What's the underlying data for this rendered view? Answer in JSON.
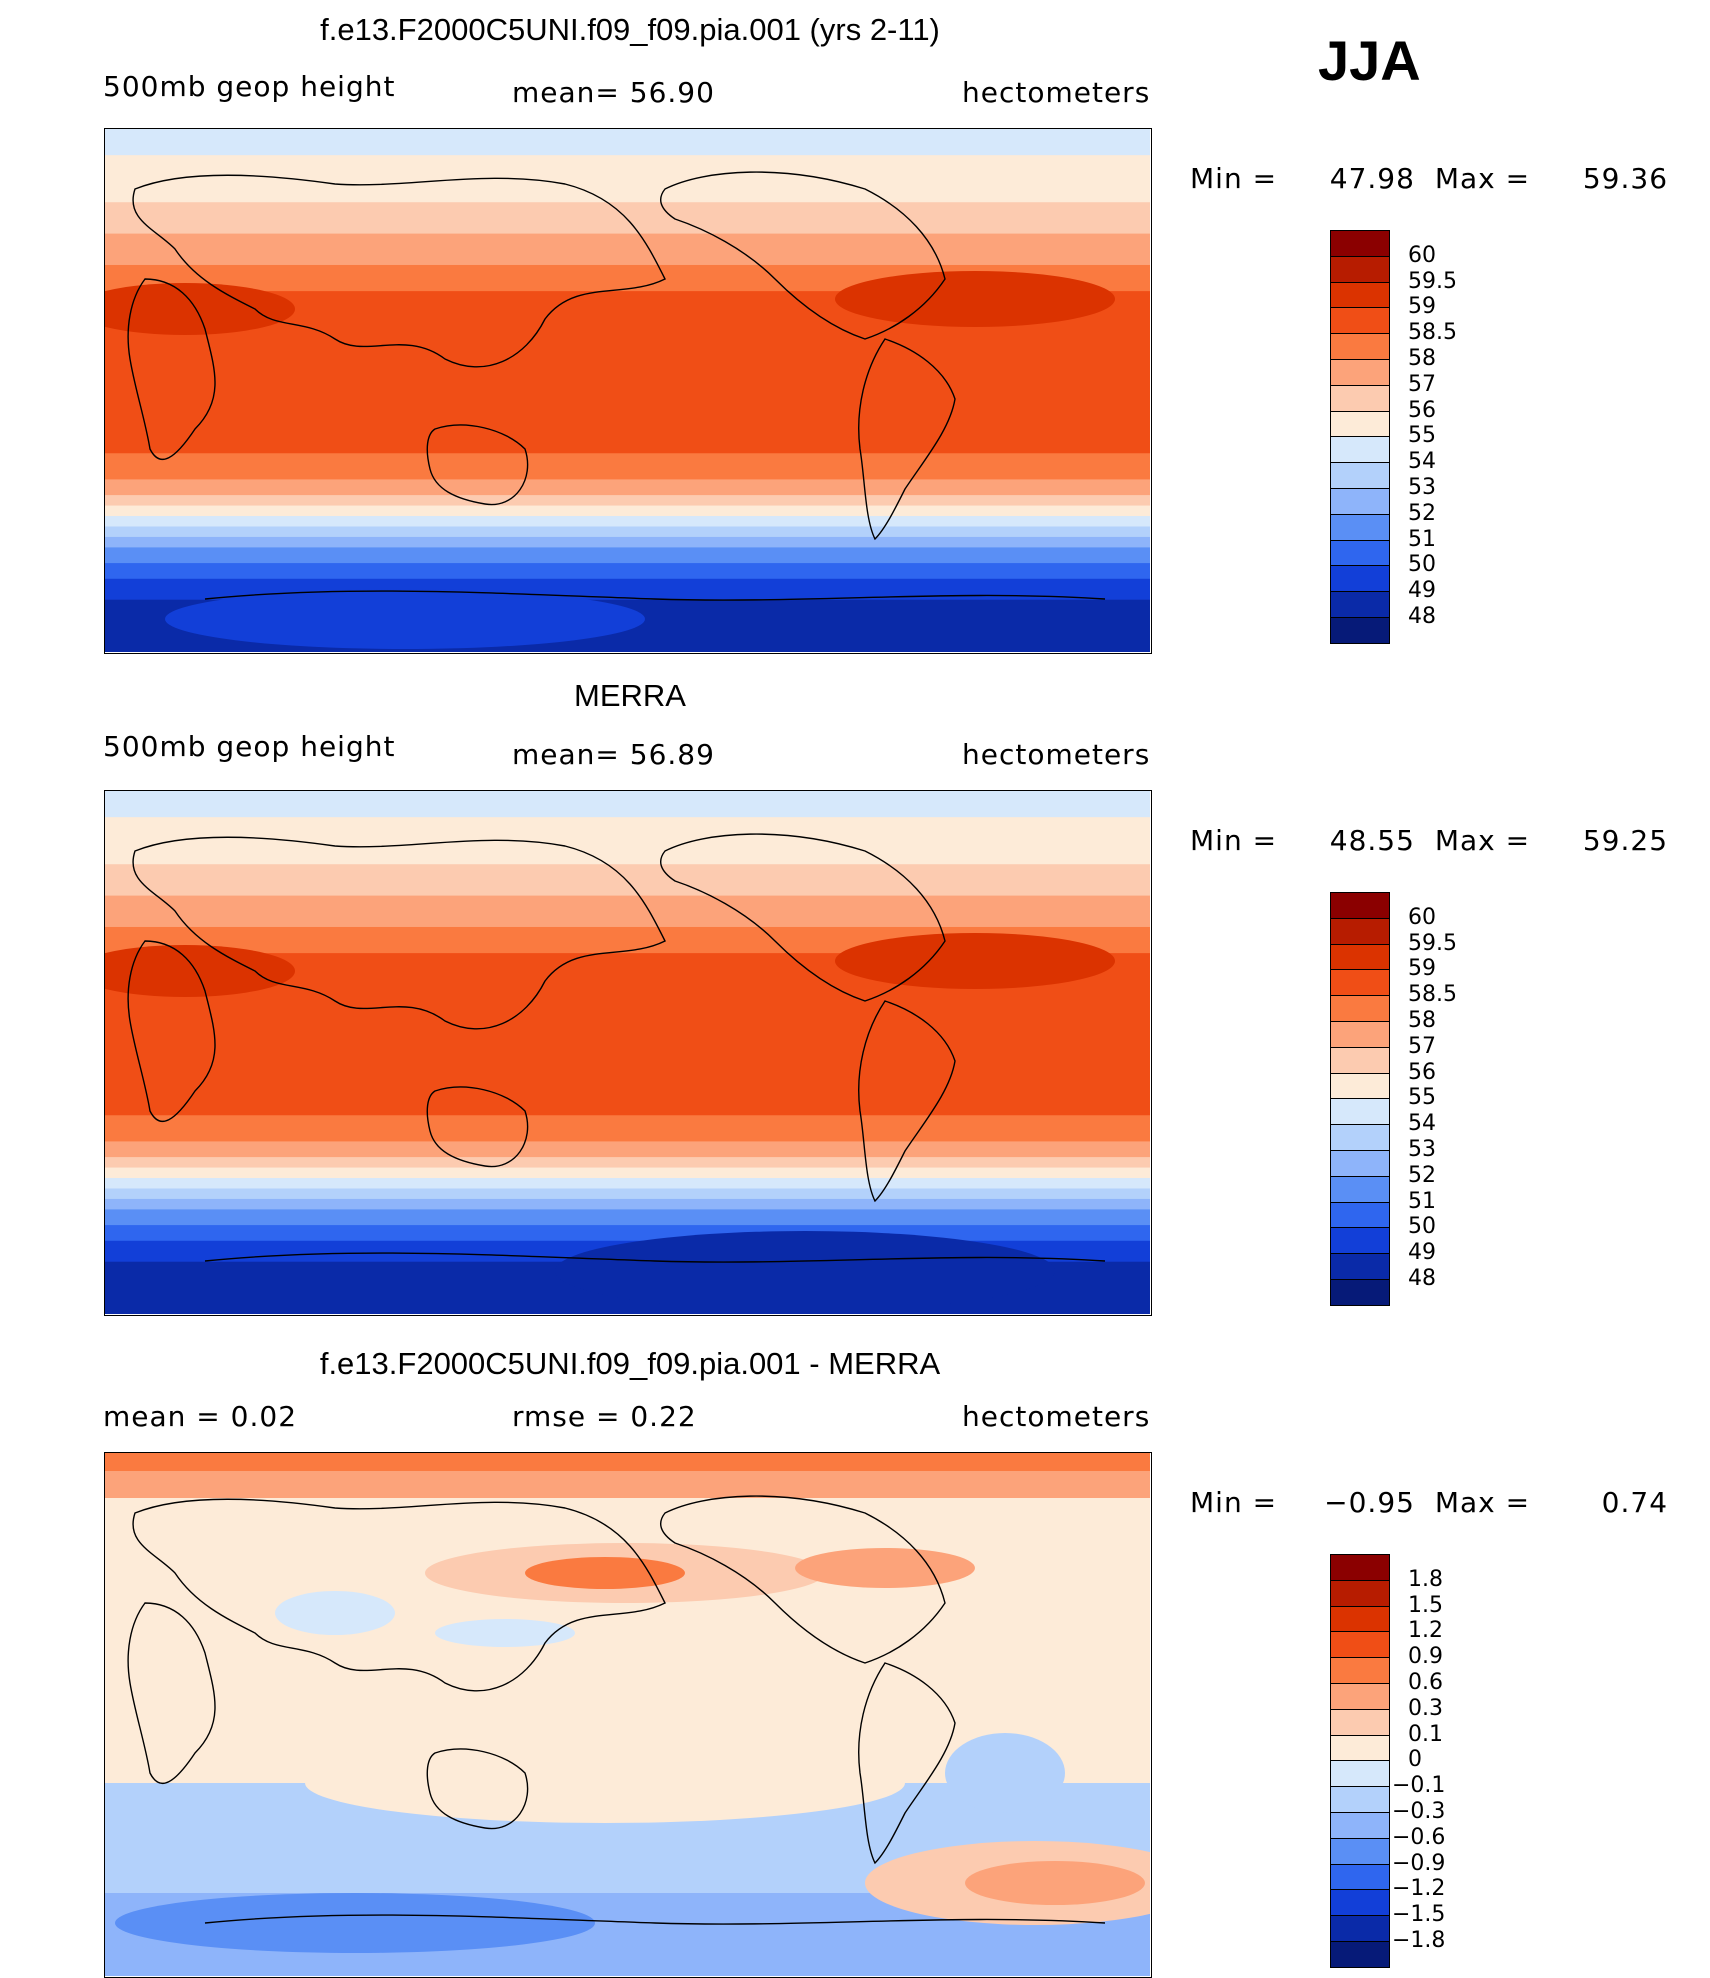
{
  "season": "JJA",
  "panels": [
    {
      "title": "f.e13.F2000C5UNI.f09_f09.pia.001 (yrs 2-11)",
      "left_label": "500mb  geop  height",
      "mid_label": "mean=   56.90",
      "units": "hectometers",
      "min_label": "Min  =",
      "min_value": "47.98",
      "max_label": "Max  =",
      "max_value": "59.36",
      "scheme": "field",
      "colorbar_labels": [
        "60",
        "59.5",
        "59",
        "58.5",
        "58",
        "57",
        "56",
        "55",
        "54",
        "53",
        "52",
        "51",
        "50",
        "49",
        "48"
      ]
    },
    {
      "title": "MERRA",
      "left_label": "500mb  geop  height",
      "mid_label": "mean=   56.89",
      "units": "hectometers",
      "min_label": "Min  =",
      "min_value": "48.55",
      "max_label": "Max  =",
      "max_value": "59.25",
      "scheme": "field",
      "colorbar_labels": [
        "60",
        "59.5",
        "59",
        "58.5",
        "58",
        "57",
        "56",
        "55",
        "54",
        "53",
        "52",
        "51",
        "50",
        "49",
        "48"
      ]
    },
    {
      "title": "f.e13.F2000C5UNI.f09_f09.pia.001 - MERRA",
      "left_label": "mean  =      0.02",
      "mid_label": "rmse  =      0.22",
      "units": "hectometers",
      "min_label": "Min  =",
      "min_value": "−0.95",
      "max_label": "Max  =",
      "max_value": "0.74",
      "scheme": "diff",
      "colorbar_labels": [
        "1.8",
        "1.5",
        "1.2",
        "0.9",
        "0.6",
        "0.3",
        "0.1",
        "0",
        "−0.1",
        "−0.3",
        "−0.6",
        "−0.9",
        "−1.2",
        "−1.5",
        "−1.8"
      ]
    }
  ],
  "colors": {
    "colorbar": [
      "#8b0000",
      "#b71c00",
      "#db3300",
      "#f04e16",
      "#fa7a40",
      "#fca37a",
      "#fccbb0",
      "#fdebd8",
      "#d6e8fb",
      "#b3d1fb",
      "#8eb4fa",
      "#5a8ff5",
      "#2f66ef",
      "#123fd8",
      "#0a2aa8",
      "#061a78"
    ]
  },
  "chart_data": [
    {
      "type": "heatmap",
      "title": "f.e13.F2000C5UNI.f09_f09.pia.001 (yrs 2-11)",
      "variable": "500mb geop height",
      "units": "hectometers",
      "mean": 56.9,
      "min": 47.98,
      "max": 59.36,
      "contour_levels": [
        48,
        49,
        50,
        51,
        52,
        53,
        54,
        55,
        56,
        57,
        58,
        58.5,
        59,
        59.5,
        60
      ]
    },
    {
      "type": "heatmap",
      "title": "MERRA",
      "variable": "500mb geop height",
      "units": "hectometers",
      "mean": 56.89,
      "min": 48.55,
      "max": 59.25,
      "contour_levels": [
        48,
        49,
        50,
        51,
        52,
        53,
        54,
        55,
        56,
        57,
        58,
        58.5,
        59,
        59.5,
        60
      ]
    },
    {
      "type": "heatmap",
      "title": "f.e13.F2000C5UNI.f09_f09.pia.001 - MERRA",
      "units": "hectometers",
      "mean": 0.02,
      "rmse": 0.22,
      "min": -0.95,
      "max": 0.74,
      "contour_levels": [
        -1.8,
        -1.5,
        -1.2,
        -0.9,
        -0.6,
        -0.3,
        -0.1,
        0,
        0.1,
        0.3,
        0.6,
        0.9,
        1.2,
        1.5,
        1.8
      ]
    }
  ]
}
